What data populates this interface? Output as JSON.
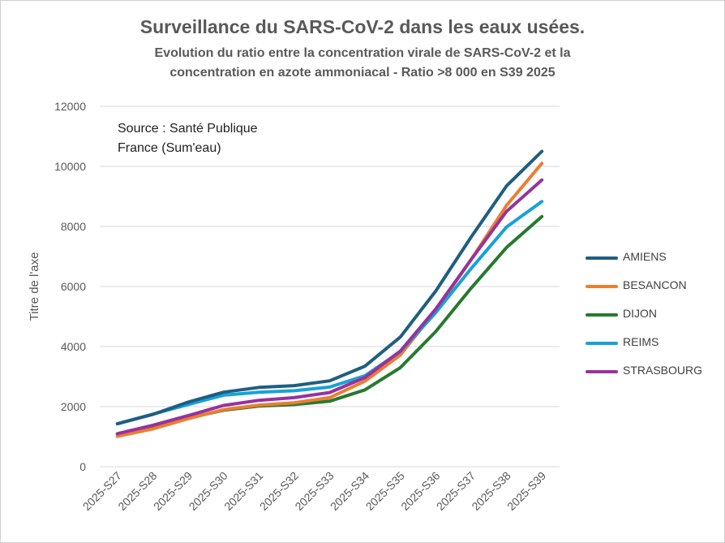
{
  "chart_data": {
    "type": "line",
    "title": "Surveillance du SARS-CoV-2 dans les eaux usées.",
    "subtitle_line1": "Evolution du ratio entre la concentration virale de SARS-CoV-2 et la",
    "subtitle_line2": "concentration en azote ammoniacal - Ratio >8 000 en S39 2025",
    "annotation_line1": "Source : Santé Publique",
    "annotation_line2": "France (Sum'eau)",
    "xlabel": "",
    "ylabel": "Titre de l'axe",
    "ylim": [
      0,
      12000
    ],
    "yticks": [
      "0",
      "2000",
      "4000",
      "6000",
      "8000",
      "10000",
      "12000"
    ],
    "categories": [
      "2025-S27",
      "2025-S28",
      "2025-S29",
      "2025-S30",
      "2025-S31",
      "2025-S32",
      "2025-S33",
      "2025-S34",
      "2025-S35",
      "2025-S36",
      "2025-S37",
      "2025-S38",
      "2025-S39"
    ],
    "grid": true,
    "legend_position": "right",
    "series": [
      {
        "name": "AMIENS",
        "color": "#1f5e80",
        "values": [
          1430,
          1740,
          2150,
          2480,
          2640,
          2700,
          2860,
          3350,
          4320,
          5850,
          7650,
          9350,
          10500
        ]
      },
      {
        "name": "BESANCON",
        "color": "#ed7d31",
        "values": [
          1010,
          1260,
          1600,
          1900,
          2050,
          2130,
          2300,
          2850,
          3720,
          5200,
          6900,
          8700,
          10100
        ]
      },
      {
        "name": "DIJON",
        "color": "#267a2e",
        "values": [
          1080,
          1350,
          1620,
          1880,
          2020,
          2070,
          2180,
          2560,
          3300,
          4500,
          5950,
          7300,
          8330
        ]
      },
      {
        "name": "REIMS",
        "color": "#17a2d8",
        "values": [
          1430,
          1750,
          2070,
          2380,
          2480,
          2530,
          2650,
          3030,
          3830,
          5130,
          6600,
          7980,
          8830
        ]
      },
      {
        "name": "STRASBOURG",
        "color": "#96339b",
        "values": [
          1100,
          1380,
          1700,
          2040,
          2210,
          2300,
          2470,
          2970,
          3850,
          5250,
          6900,
          8500,
          9550
        ]
      }
    ]
  }
}
